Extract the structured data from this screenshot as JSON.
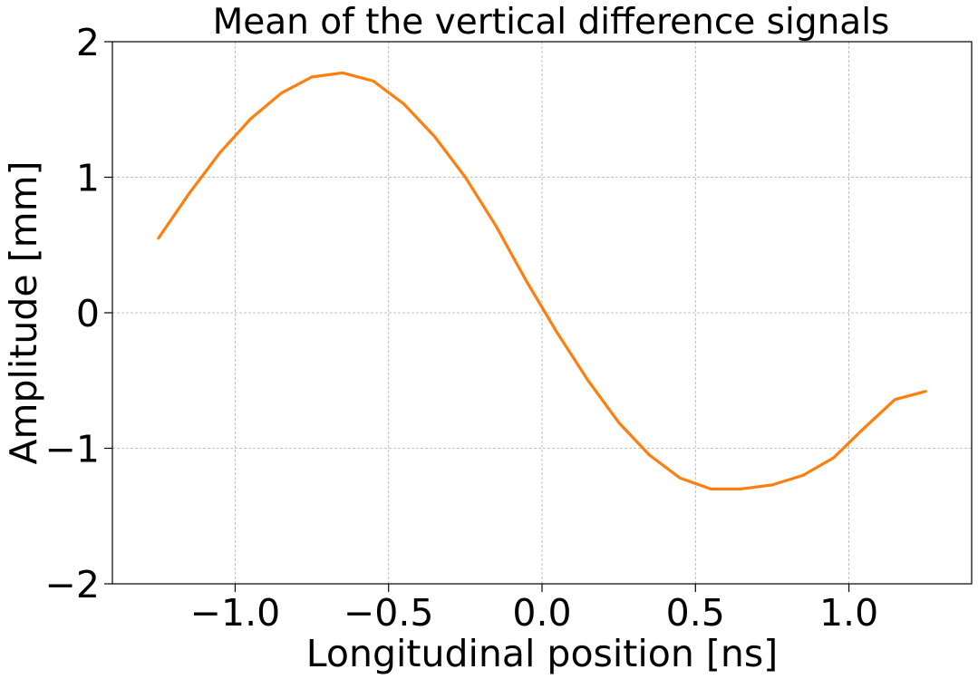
{
  "chart_data": {
    "type": "line",
    "title": "Mean of the vertical difference signals",
    "xlabel": "Longitudinal position [ns]",
    "ylabel": "Amplitude [mm]",
    "xlim": [
      -1.4,
      1.4
    ],
    "ylim": [
      -2,
      2
    ],
    "grid": true,
    "xticks": [
      {
        "value": -1.0,
        "label": "−1.0"
      },
      {
        "value": -0.5,
        "label": "−0.5"
      },
      {
        "value": 0.0,
        "label": "0.0"
      },
      {
        "value": 0.5,
        "label": "0.5"
      },
      {
        "value": 1.0,
        "label": "1.0"
      }
    ],
    "yticks": [
      {
        "value": 2,
        "label": "2"
      },
      {
        "value": 1,
        "label": "1"
      },
      {
        "value": 0,
        "label": "0"
      },
      {
        "value": -1,
        "label": "−1"
      },
      {
        "value": -2,
        "label": "−2"
      }
    ],
    "series": [
      {
        "color": "#ff7f0e",
        "x": [
          -1.25,
          -1.15,
          -1.05,
          -0.95,
          -0.85,
          -0.75,
          -0.65,
          -0.55,
          -0.45,
          -0.35,
          -0.25,
          -0.15,
          -0.05,
          0.05,
          0.15,
          0.25,
          0.35,
          0.45,
          0.55,
          0.65,
          0.75,
          0.85,
          0.95,
          1.05,
          1.15,
          1.25
        ],
        "y": [
          0.55,
          0.88,
          1.18,
          1.43,
          1.62,
          1.74,
          1.77,
          1.71,
          1.54,
          1.3,
          1.0,
          0.64,
          0.23,
          -0.15,
          -0.5,
          -0.81,
          -1.05,
          -1.22,
          -1.3,
          -1.3,
          -1.27,
          -1.2,
          -1.07,
          -0.85,
          -0.64,
          -0.58
        ]
      }
    ]
  }
}
